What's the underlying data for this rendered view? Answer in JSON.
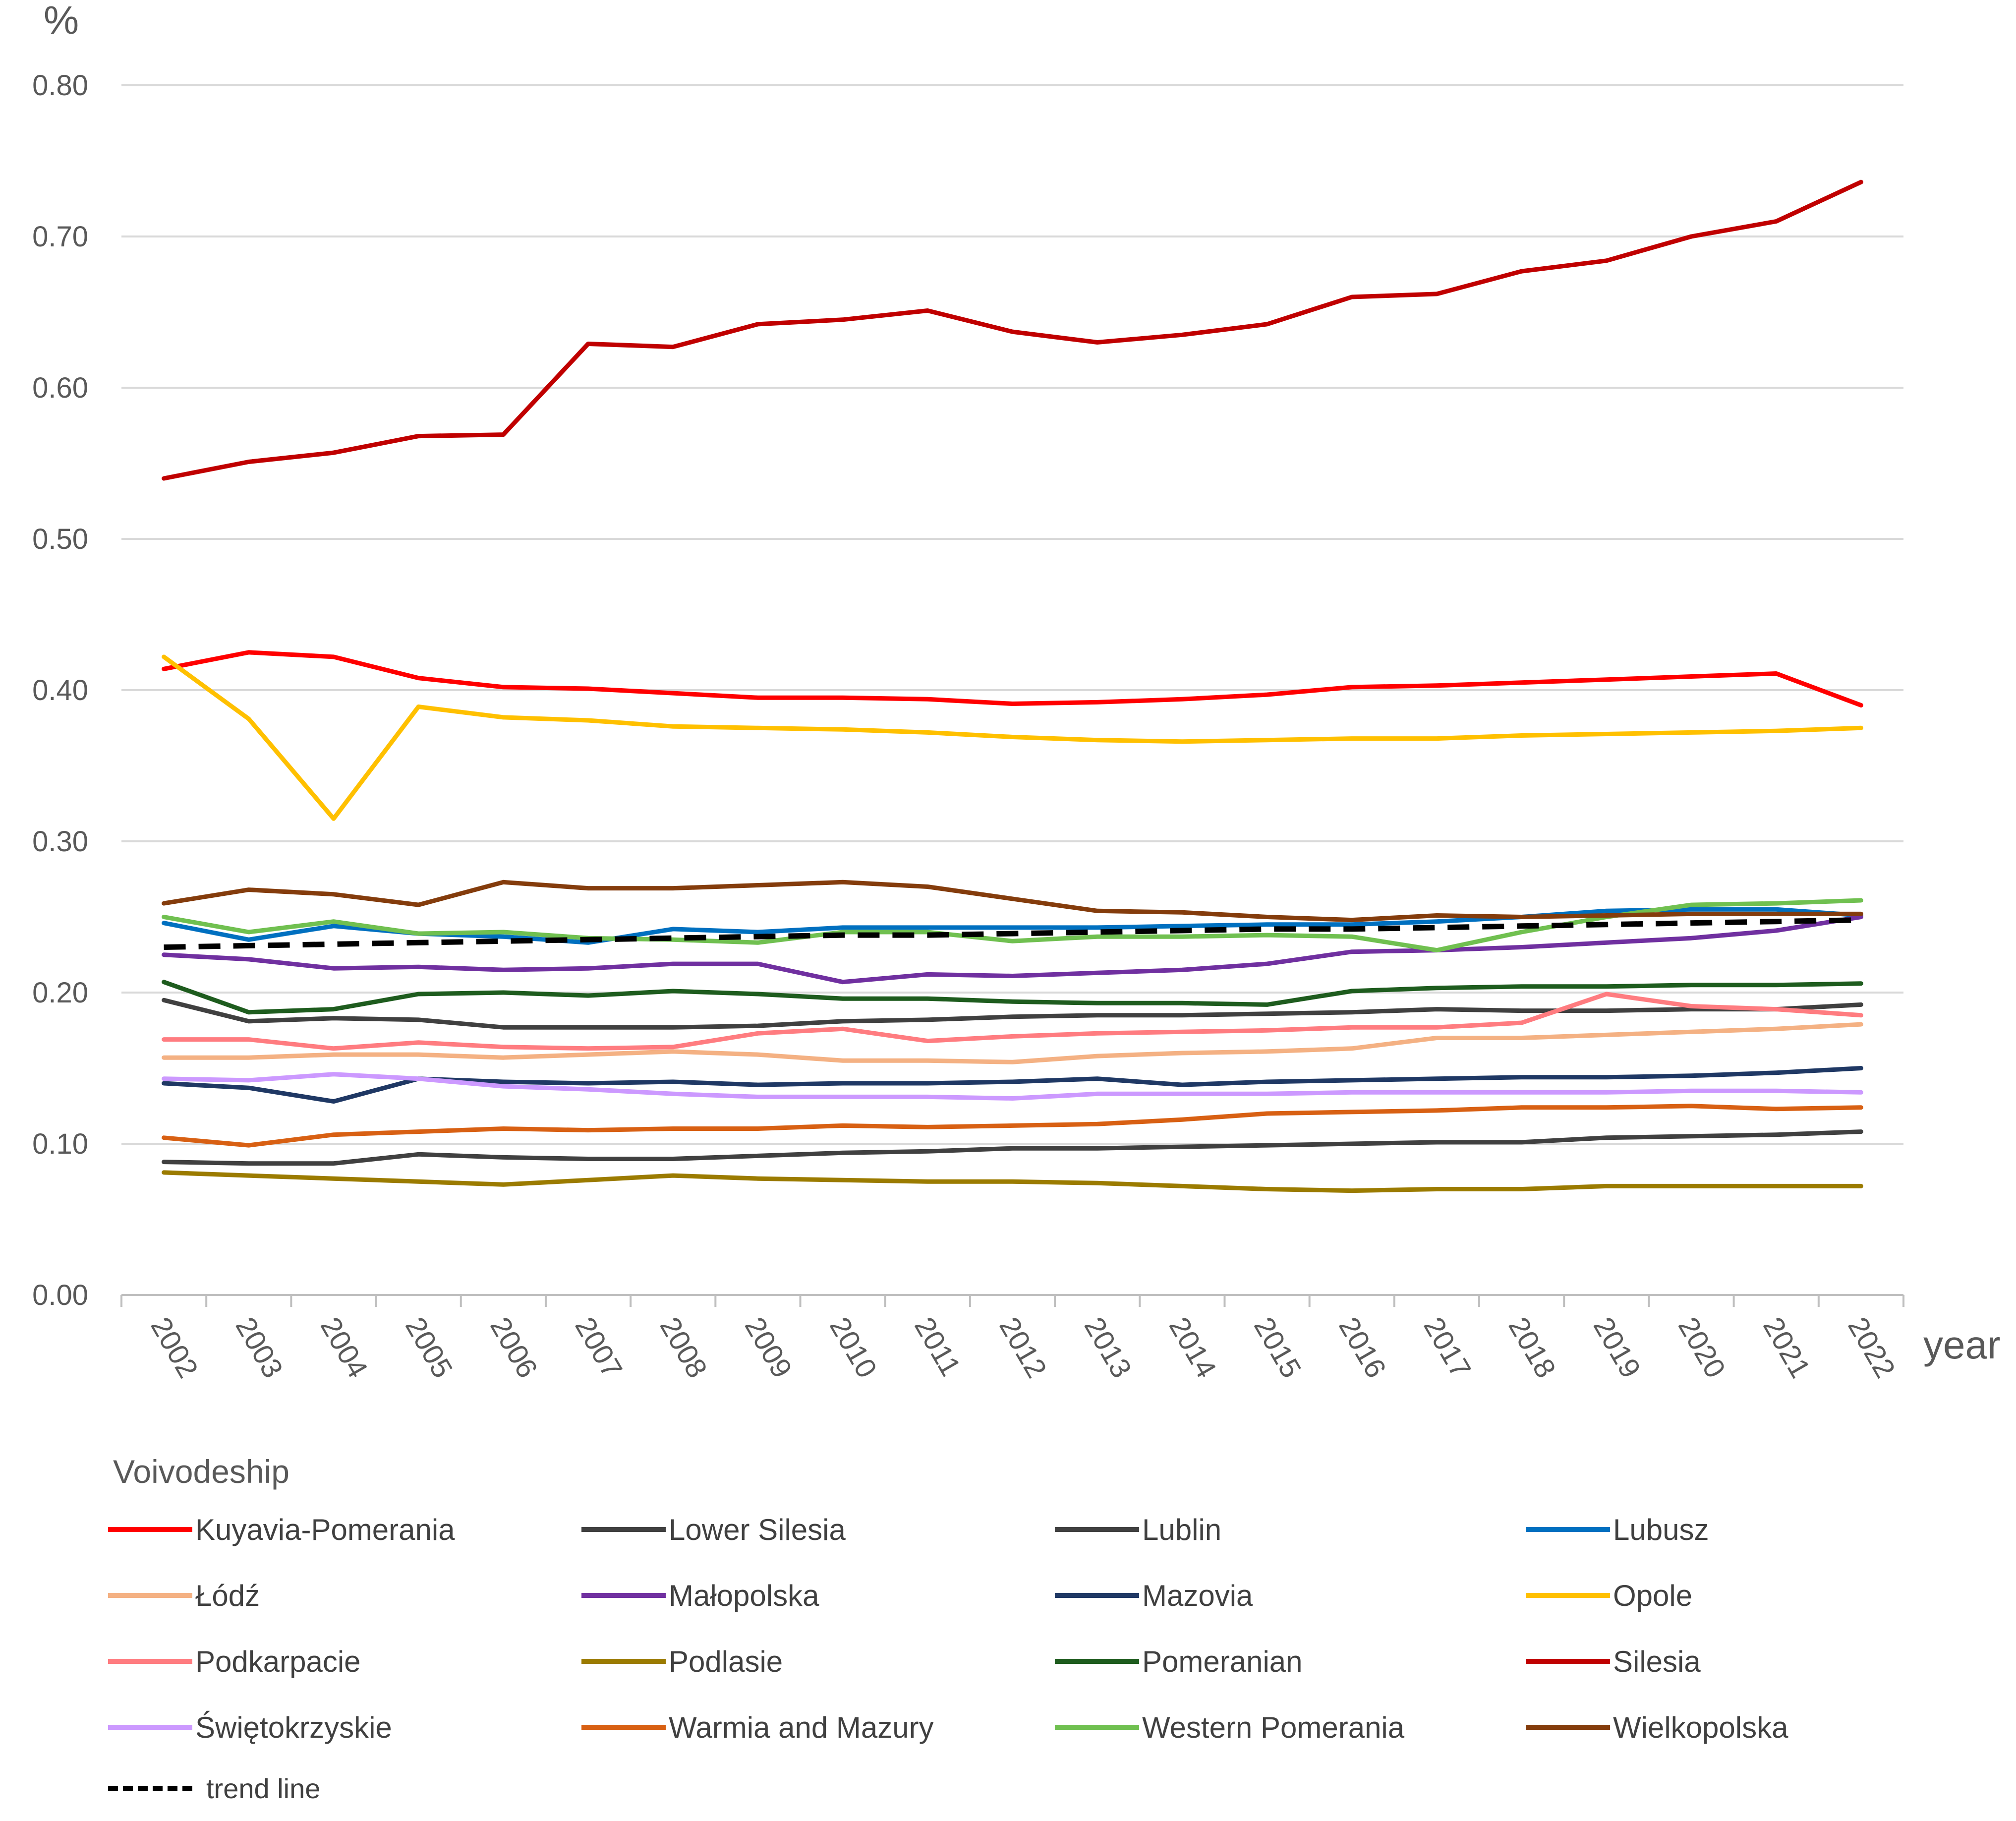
{
  "chart_data": {
    "type": "line",
    "ylabel": "%",
    "xlabel": "year",
    "ylim": [
      0,
      0.8
    ],
    "yticks": [
      "0.00",
      "0.10",
      "0.20",
      "0.30",
      "0.40",
      "0.50",
      "0.60",
      "0.70",
      "0.80"
    ],
    "categories": [
      "2002",
      "2003",
      "2004",
      "2005",
      "2006",
      "2007",
      "2008",
      "2009",
      "2010",
      "2011",
      "2012",
      "2013",
      "2014",
      "2015",
      "2016",
      "2017",
      "2018",
      "2019",
      "2020",
      "2021",
      "2022"
    ],
    "legend_title": "Voivodeship",
    "grid": true,
    "series": [
      {
        "name": "Kuyavia-Pomerania",
        "color": "#ff0000",
        "values": [
          0.414,
          0.425,
          0.422,
          0.408,
          0.402,
          0.401,
          0.398,
          0.395,
          0.395,
          0.394,
          0.391,
          0.392,
          0.394,
          0.397,
          0.402,
          0.403,
          0.405,
          0.407,
          0.409,
          0.411,
          0.39
        ]
      },
      {
        "name": "Lower Silesia",
        "color": "#404040",
        "values": [
          0.195,
          0.181,
          0.183,
          0.182,
          0.177,
          0.177,
          0.177,
          0.178,
          0.181,
          0.182,
          0.184,
          0.185,
          0.185,
          0.186,
          0.187,
          0.189,
          0.188,
          0.188,
          0.189,
          0.189,
          0.192
        ]
      },
      {
        "name": "Lublin",
        "color": "#404040",
        "values": [
          0.088,
          0.087,
          0.087,
          0.093,
          0.091,
          0.09,
          0.09,
          0.092,
          0.094,
          0.095,
          0.097,
          0.097,
          0.098,
          0.099,
          0.1,
          0.101,
          0.101,
          0.104,
          0.105,
          0.106,
          0.108
        ]
      },
      {
        "name": "Lubusz",
        "color": "#0070c0",
        "values": [
          0.246,
          0.235,
          0.244,
          0.239,
          0.237,
          0.233,
          0.242,
          0.24,
          0.243,
          0.243,
          0.243,
          0.243,
          0.244,
          0.245,
          0.245,
          0.247,
          0.25,
          0.254,
          0.255,
          0.255,
          0.251
        ]
      },
      {
        "name": "Łódź",
        "color": "#f4b183",
        "values": [
          0.157,
          0.157,
          0.159,
          0.159,
          0.157,
          0.159,
          0.161,
          0.159,
          0.155,
          0.155,
          0.154,
          0.158,
          0.16,
          0.161,
          0.163,
          0.17,
          0.17,
          0.172,
          0.174,
          0.176,
          0.179
        ]
      },
      {
        "name": "Małopolska",
        "color": "#7030a0",
        "values": [
          0.225,
          0.222,
          0.216,
          0.217,
          0.215,
          0.216,
          0.219,
          0.219,
          0.207,
          0.212,
          0.211,
          0.213,
          0.215,
          0.219,
          0.227,
          0.228,
          0.23,
          0.233,
          0.236,
          0.241,
          0.25
        ]
      },
      {
        "name": "Mazovia",
        "color": "#1f3864",
        "values": [
          0.14,
          0.137,
          0.128,
          0.143,
          0.141,
          0.14,
          0.141,
          0.139,
          0.14,
          0.14,
          0.141,
          0.143,
          0.139,
          0.141,
          0.142,
          0.143,
          0.144,
          0.144,
          0.145,
          0.147,
          0.15
        ]
      },
      {
        "name": "Opole",
        "color": "#ffc000",
        "values": [
          0.422,
          0.381,
          0.315,
          0.389,
          0.382,
          0.38,
          0.376,
          0.375,
          0.374,
          0.372,
          0.369,
          0.367,
          0.366,
          0.367,
          0.368,
          0.368,
          0.37,
          0.371,
          0.372,
          0.373,
          0.375
        ]
      },
      {
        "name": "Podkarpacie",
        "color": "#ff7c80",
        "values": [
          0.169,
          0.169,
          0.163,
          0.167,
          0.164,
          0.163,
          0.164,
          0.173,
          0.176,
          0.168,
          0.171,
          0.173,
          0.174,
          0.175,
          0.177,
          0.177,
          0.18,
          0.199,
          0.191,
          0.189,
          0.185
        ]
      },
      {
        "name": "Podlasie",
        "color": "#9b7b00",
        "values": [
          0.081,
          0.079,
          0.077,
          0.075,
          0.073,
          0.076,
          0.079,
          0.077,
          0.076,
          0.075,
          0.075,
          0.074,
          0.072,
          0.07,
          0.069,
          0.07,
          0.07,
          0.072,
          0.072,
          0.072,
          0.072
        ]
      },
      {
        "name": "Pomeranian",
        "color": "#1e5c1e",
        "values": [
          0.207,
          0.187,
          0.189,
          0.199,
          0.2,
          0.198,
          0.201,
          0.199,
          0.196,
          0.196,
          0.194,
          0.193,
          0.193,
          0.192,
          0.201,
          0.203,
          0.204,
          0.204,
          0.205,
          0.205,
          0.206
        ]
      },
      {
        "name": "Silesia",
        "color": "#c00000",
        "values": [
          0.54,
          0.551,
          0.557,
          0.568,
          0.569,
          0.629,
          0.627,
          0.642,
          0.645,
          0.651,
          0.637,
          0.63,
          0.635,
          0.642,
          0.66,
          0.662,
          0.677,
          0.684,
          0.7,
          0.71,
          0.736
        ]
      },
      {
        "name": "Świętokrzyskie",
        "color": "#cc99ff",
        "values": [
          0.143,
          0.142,
          0.146,
          0.143,
          0.138,
          0.136,
          0.133,
          0.131,
          0.131,
          0.131,
          0.13,
          0.133,
          0.133,
          0.133,
          0.134,
          0.134,
          0.134,
          0.134,
          0.135,
          0.135,
          0.134
        ]
      },
      {
        "name": "Warmia and Mazury",
        "color": "#d86013",
        "values": [
          0.104,
          0.099,
          0.106,
          0.108,
          0.11,
          0.109,
          0.11,
          0.11,
          0.112,
          0.111,
          0.112,
          0.113,
          0.116,
          0.12,
          0.121,
          0.122,
          0.124,
          0.124,
          0.125,
          0.123,
          0.124
        ]
      },
      {
        "name": "Western Pomerania",
        "color": "#70c050",
        "values": [
          0.25,
          0.24,
          0.247,
          0.239,
          0.24,
          0.236,
          0.235,
          0.233,
          0.24,
          0.24,
          0.234,
          0.237,
          0.237,
          0.238,
          0.237,
          0.228,
          0.24,
          0.25,
          0.258,
          0.259,
          0.261
        ]
      },
      {
        "name": "Wielkopolska",
        "color": "#843c0c",
        "values": [
          0.259,
          0.268,
          0.265,
          0.258,
          0.273,
          0.269,
          0.269,
          0.271,
          0.273,
          0.27,
          0.262,
          0.254,
          0.253,
          0.25,
          0.248,
          0.251,
          0.25,
          0.251,
          0.252,
          0.252,
          0.252
        ]
      },
      {
        "name": "trend line",
        "color": "#000000",
        "dashed": true,
        "values": [
          0.23,
          0.231,
          0.232,
          0.233,
          0.234,
          0.235,
          0.236,
          0.237,
          0.238,
          0.238,
          0.239,
          0.24,
          0.241,
          0.242,
          0.242,
          0.243,
          0.244,
          0.245,
          0.246,
          0.247,
          0.248
        ]
      }
    ]
  }
}
